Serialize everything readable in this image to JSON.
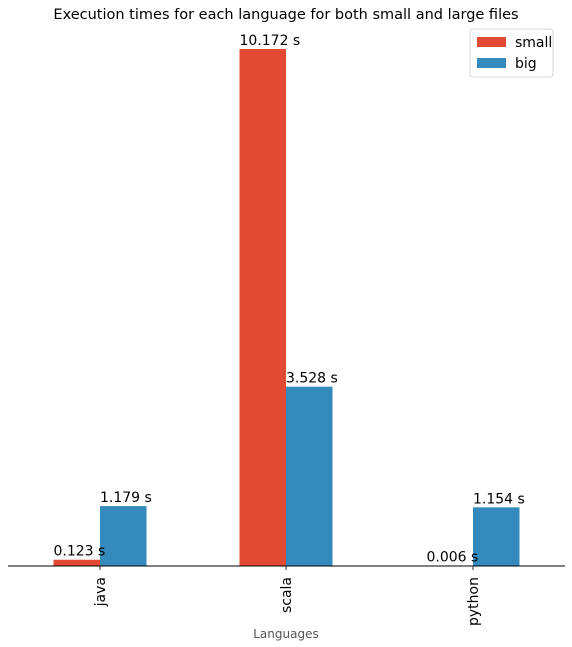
{
  "chart_data": {
    "type": "bar",
    "title": "Execution times for each language for both small and large files",
    "xlabel": "Languages",
    "ylabel": "",
    "categories": [
      "java",
      "scala",
      "python"
    ],
    "series": [
      {
        "name": "small",
        "values": [
          0.123,
          10.172,
          0.006
        ],
        "labels": [
          "0.123 s",
          "10.172 s",
          "0.006 s"
        ],
        "color": "#e24a33"
      },
      {
        "name": "big",
        "values": [
          1.179,
          3.528,
          1.154
        ],
        "labels": [
          "1.179 s",
          "3.528 s",
          "1.154 s"
        ],
        "color": "#348abd"
      }
    ],
    "ylim": [
      0,
      10.172
    ],
    "grid": false,
    "legend_position": "top-right",
    "xtick_rotation": "vertical"
  }
}
